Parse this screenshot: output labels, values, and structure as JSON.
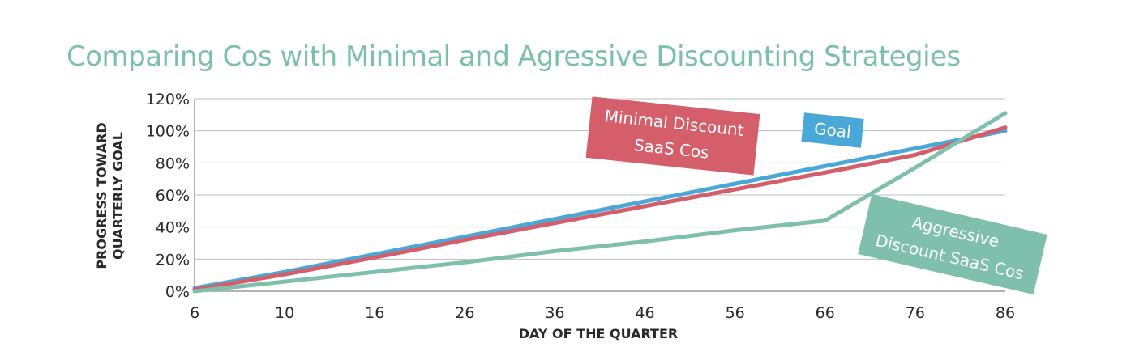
{
  "chart_data": {
    "type": "line",
    "title": "Comparing Cos with Minimal and Agressive Discounting Strategies",
    "xlabel": "DAY OF THE QUARTER",
    "ylabel_lines": [
      "PROGRESS TOWARD",
      "QUARTERLY GOAL"
    ],
    "x": [
      "6",
      "10",
      "16",
      "26",
      "36",
      "46",
      "56",
      "66",
      "76",
      "86"
    ],
    "y_ticks": [
      "0%",
      "20%",
      "40%",
      "60%",
      "80%",
      "100%",
      "120%"
    ],
    "ylim": [
      0,
      120
    ],
    "grid": true,
    "series": [
      {
        "name": "Goal",
        "color": "#4aa8d8",
        "values": [
          2,
          12,
          23,
          34,
          45,
          56,
          67,
          78,
          89,
          100
        ]
      },
      {
        "name": "Minimal Discount SaaS Cos",
        "color": "#d45f6b",
        "values": [
          1,
          10.5,
          21,
          32,
          42.5,
          53,
          63.5,
          74,
          85,
          102
        ]
      },
      {
        "name": "Aggressive Discount SaaS Cos",
        "color": "#7fc0ac",
        "values": [
          0,
          6,
          12,
          18,
          25,
          31,
          38,
          44,
          77,
          111
        ]
      }
    ],
    "annotations": [
      {
        "series": "Minimal Discount SaaS Cos",
        "lines": [
          "Minimal  Discount",
          "SaaS Cos"
        ],
        "color": "#d45f6b"
      },
      {
        "series": "Goal",
        "lines": [
          "Goal"
        ],
        "color": "#4aa8d8"
      },
      {
        "series": "Aggressive Discount SaaS Cos",
        "lines": [
          "Aggressive",
          "Discount SaaS Cos"
        ],
        "color": "#7fc0ac"
      }
    ]
  }
}
